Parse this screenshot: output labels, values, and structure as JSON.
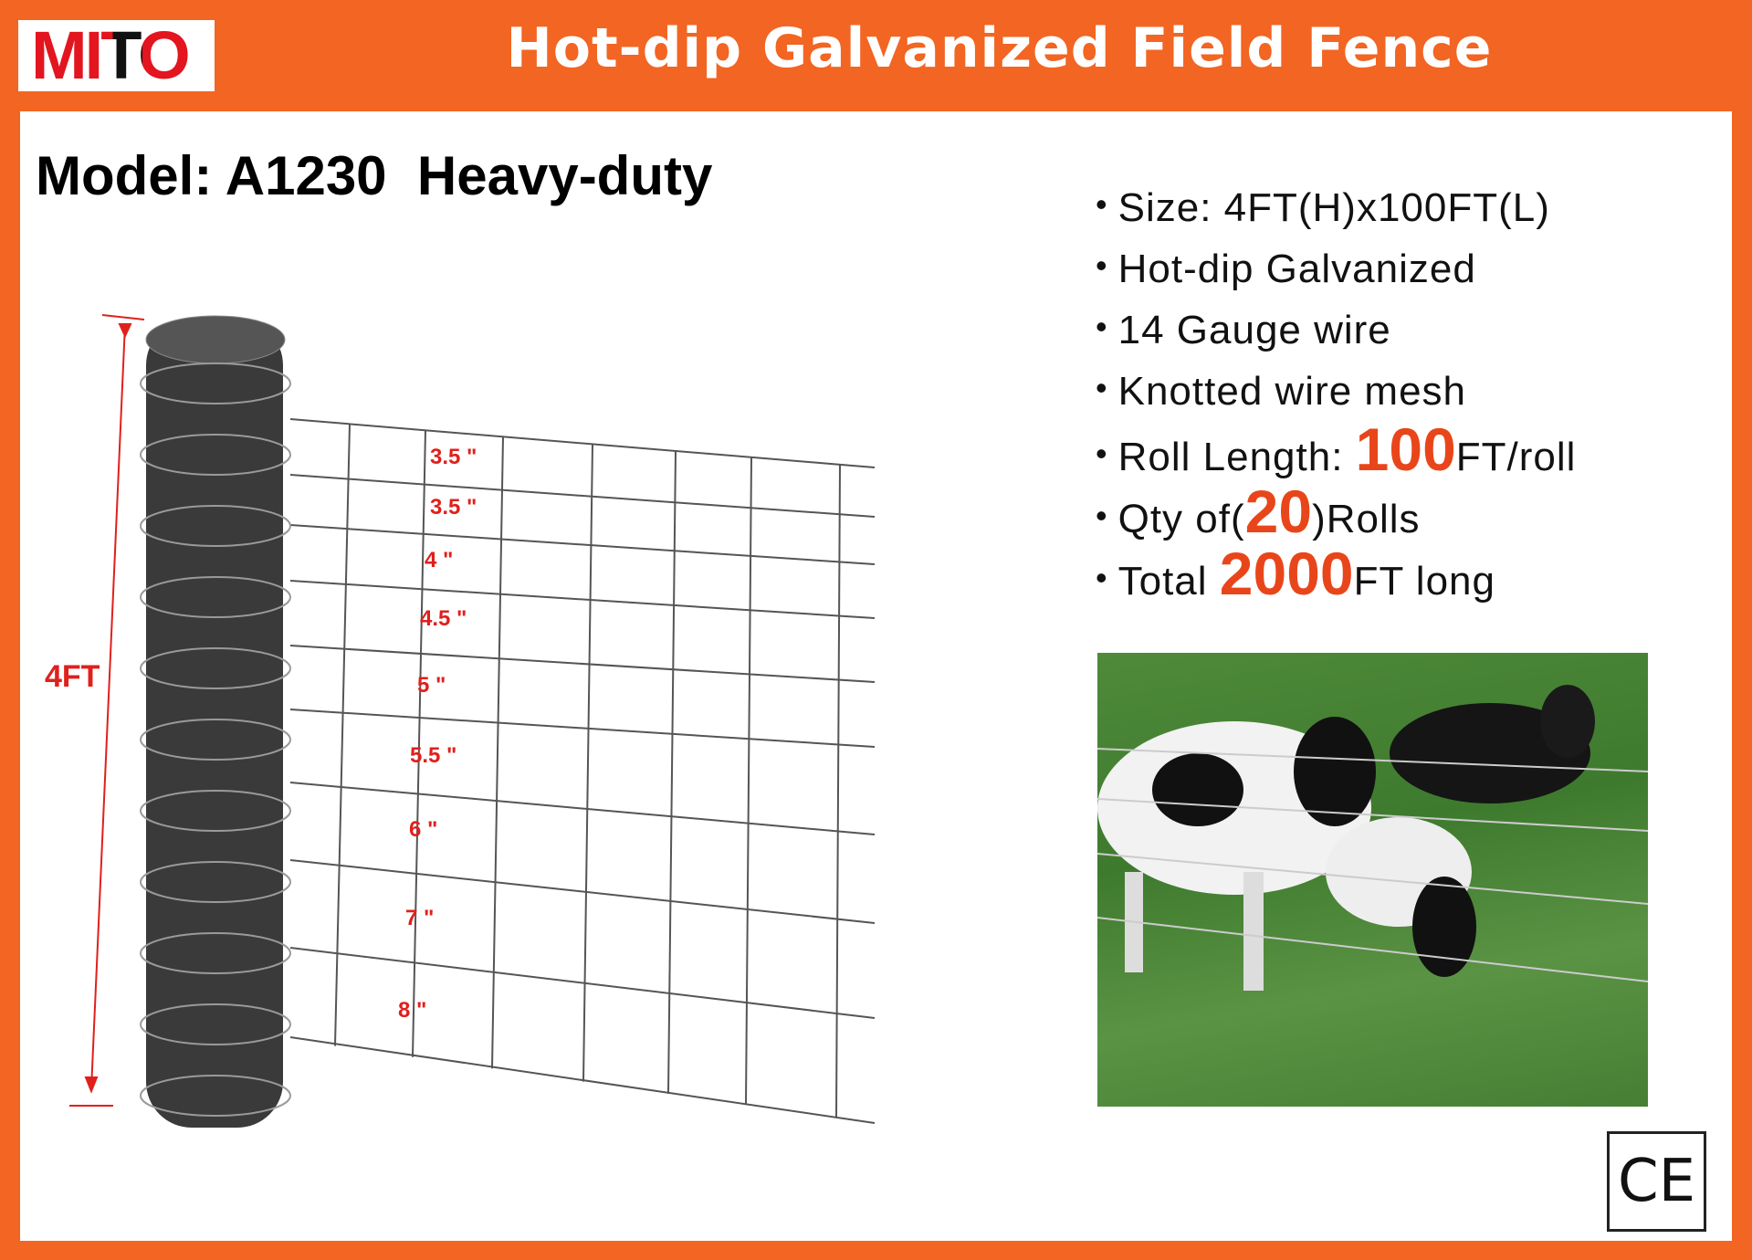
{
  "header": {
    "brand": "MITO",
    "title": "Hot-dip Galvanized Field Fence"
  },
  "model": {
    "text": "Model: A1230  Heavy-duty"
  },
  "specs": [
    {
      "pre": "Size: 4FT(H)x100FT(L)",
      "hl": "",
      "post": ""
    },
    {
      "pre": "Hot-dip Galvanized",
      "hl": "",
      "post": ""
    },
    {
      "pre": "14 Gauge wire",
      "hl": "",
      "post": ""
    },
    {
      "pre": "Knotted wire mesh",
      "hl": "",
      "post": ""
    },
    {
      "pre": "Roll Length: ",
      "hl": "100",
      "post": "FT/roll"
    },
    {
      "pre": "Qty of(",
      "hl": "20",
      "post": ")Rolls"
    },
    {
      "pre": "Total ",
      "hl": "2000",
      "post": "FT long"
    }
  ],
  "diagram": {
    "height_label": "4FT",
    "spacings": [
      "3.5 \"",
      "3.5 \"",
      "4 \"",
      "4.5 \"",
      "5 \"",
      "5.5 \"",
      "6 \"",
      "7 \"",
      "8 \""
    ]
  },
  "certification": "CE",
  "colors": {
    "brand_orange": "#f26522",
    "highlight": "#e8461a",
    "label_red": "#e0201c"
  }
}
